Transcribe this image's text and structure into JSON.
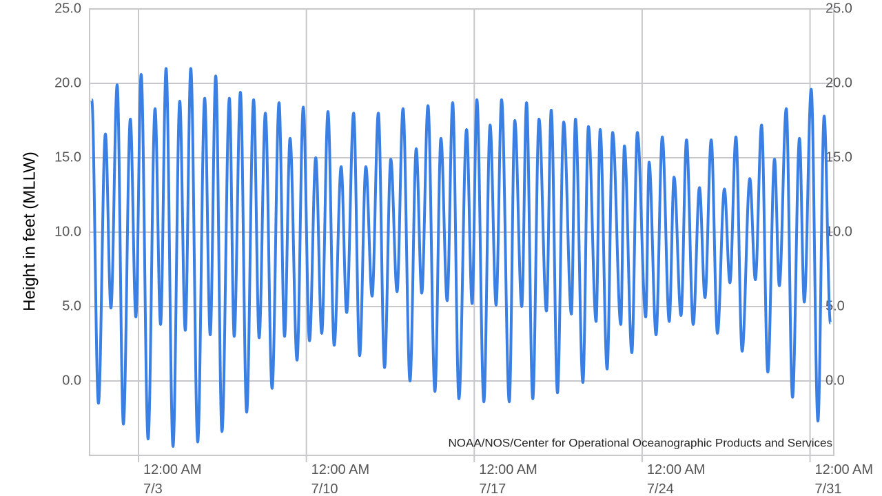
{
  "chart_data": {
    "type": "line",
    "ylabel": "Height in feet (MLLW)",
    "source": "NOAA/NOS/Center for Operational Oceanographic Products and Services",
    "color": "#3a80e4",
    "grid": true,
    "xlim": [
      0.96,
      31.99
    ],
    "xticks": [
      {
        "value": 3,
        "label": "12:00 AM 7/3"
      },
      {
        "value": 10,
        "label": "12:00 AM 7/10"
      },
      {
        "value": 17,
        "label": "12:00 AM 7/17"
      },
      {
        "value": 24,
        "label": "12:00 AM 7/24"
      },
      {
        "value": 31,
        "label": "12:00 AM 7/31"
      }
    ],
    "ylim": [
      -5,
      25
    ],
    "yticks": [
      {
        "value": 0,
        "label": "0.0"
      },
      {
        "value": 5,
        "label": "5.0"
      },
      {
        "value": 10,
        "label": "10.0"
      },
      {
        "value": 15,
        "label": "15.0"
      },
      {
        "value": 20,
        "label": "20.0"
      },
      {
        "value": 25,
        "label": "25.0"
      }
    ],
    "y2lim": [
      -5,
      25
    ],
    "y2ticks": [
      {
        "value": 0,
        "label": "0.0"
      },
      {
        "value": 5,
        "label": "5.0"
      },
      {
        "value": 10,
        "label": "10.0"
      },
      {
        "value": 15,
        "label": "15.0"
      },
      {
        "value": 20,
        "label": "20.0"
      },
      {
        "value": 25,
        "label": "25.0"
      }
    ],
    "x": [
      1.05,
      1.33,
      1.62,
      1.85,
      2.11,
      2.37,
      2.66,
      2.89,
      3.11,
      3.4,
      3.69,
      3.92,
      4.15,
      4.44,
      4.72,
      4.95,
      5.18,
      5.47,
      5.76,
      5.99,
      6.22,
      6.48,
      6.79,
      6.99,
      7.25,
      7.51,
      7.8,
      8.03,
      8.29,
      8.57,
      8.86,
      9.09,
      9.32,
      9.61,
      9.87,
      10.13,
      10.39,
      10.64,
      10.9,
      11.16,
      11.45,
      11.68,
      11.97,
      12.22,
      12.48,
      12.74,
      13.0,
      13.26,
      13.52,
      13.78,
      14.03,
      14.32,
      14.58,
      14.81,
      15.07,
      15.36,
      15.61,
      15.87,
      16.1,
      16.36,
      16.68,
      16.91,
      17.11,
      17.4,
      17.66,
      17.91,
      18.14,
      18.46,
      18.69,
      18.98,
      19.18,
      19.44,
      19.7,
      20.01,
      20.21,
      20.47,
      20.73,
      21.05,
      21.22,
      21.53,
      21.76,
      22.08,
      22.25,
      22.54,
      22.77,
      23.11,
      23.26,
      23.57,
      23.8,
      24.15,
      24.29,
      24.58,
      24.84,
      25.13,
      25.33,
      25.62,
      25.85,
      26.13,
      26.39,
      26.62,
      26.88,
      27.14,
      27.43,
      27.66,
      27.91,
      28.17,
      28.49,
      28.72,
      28.98,
      29.24,
      29.52,
      29.72,
      30.01,
      30.27,
      30.56,
      30.76,
      31.05,
      31.33,
      31.59,
      31.85
    ],
    "values": [
      18.9,
      -1.5,
      16.6,
      4.9,
      19.9,
      -2.9,
      17.6,
      4.3,
      20.6,
      -3.9,
      18.3,
      3.8,
      21.0,
      -4.4,
      18.8,
      3.4,
      21.0,
      -4.1,
      19.0,
      3.1,
      20.5,
      -3.4,
      19.0,
      3.0,
      19.4,
      -2.1,
      18.9,
      2.9,
      18.0,
      -0.5,
      18.7,
      3.0,
      16.3,
      1.4,
      18.4,
      2.7,
      15.0,
      3.2,
      18.1,
      2.4,
      14.4,
      4.6,
      18.0,
      1.7,
      14.4,
      5.7,
      18.0,
      0.9,
      14.9,
      6.0,
      18.3,
      0.0,
      15.6,
      5.9,
      18.5,
      -0.7,
      16.3,
      5.4,
      18.7,
      -1.2,
      16.9,
      5.2,
      18.9,
      -1.4,
      17.2,
      5.1,
      18.9,
      -1.4,
      17.5,
      5.0,
      18.7,
      -1.2,
      17.6,
      4.7,
      18.2,
      -0.8,
      17.4,
      4.5,
      17.6,
      -0.1,
      17.1,
      4.0,
      16.9,
      0.8,
      16.7,
      3.8,
      15.8,
      1.9,
      16.7,
      4.3,
      14.7,
      3.1,
      16.4,
      4.0,
      13.7,
      4.4,
      16.2,
      3.8,
      13.0,
      5.6,
      16.2,
      3.2,
      12.9,
      6.6,
      16.4,
      2.0,
      13.6,
      6.8,
      17.2,
      0.6,
      14.9,
      6.4,
      18.3,
      -1.1,
      16.3,
      5.3,
      19.6,
      -2.7,
      17.8,
      3.9
    ]
  }
}
